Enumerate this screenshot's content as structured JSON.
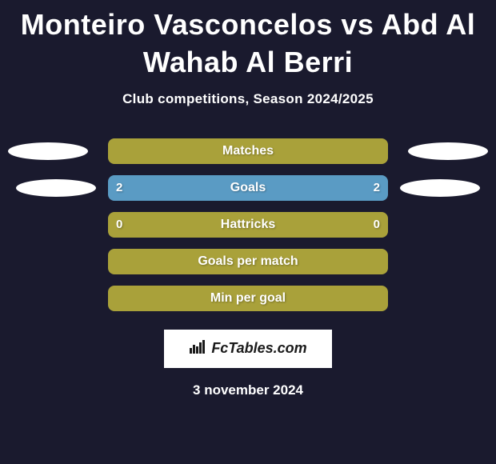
{
  "title": "Monteiro Vasconcelos vs Abd Al Wahab Al Berri",
  "subtitle": "Club competitions, Season 2024/2025",
  "date": "3 november 2024",
  "logo": {
    "text": "FcTables.com"
  },
  "colors": {
    "background": "#1a1a2e",
    "bar_olive": "#a9a13a",
    "bar_blue": "#5a9bc4",
    "ellipse": "#ffffff",
    "text": "#ffffff"
  },
  "stats": [
    {
      "label": "Matches",
      "left_value": "",
      "right_value": "",
      "bar_fill": "#a9a13a",
      "show_ellipses": true,
      "ellipse_offset": false
    },
    {
      "label": "Goals",
      "left_value": "2",
      "right_value": "2",
      "bar_fill": "#5a9bc4",
      "show_ellipses": true,
      "ellipse_offset": true
    },
    {
      "label": "Hattricks",
      "left_value": "0",
      "right_value": "0",
      "bar_fill": "#a9a13a",
      "show_ellipses": false,
      "ellipse_offset": false
    },
    {
      "label": "Goals per match",
      "left_value": "",
      "right_value": "",
      "bar_fill": "#a9a13a",
      "show_ellipses": false,
      "ellipse_offset": false
    },
    {
      "label": "Min per goal",
      "left_value": "",
      "right_value": "",
      "bar_fill": "#a9a13a",
      "show_ellipses": false,
      "ellipse_offset": false
    }
  ]
}
